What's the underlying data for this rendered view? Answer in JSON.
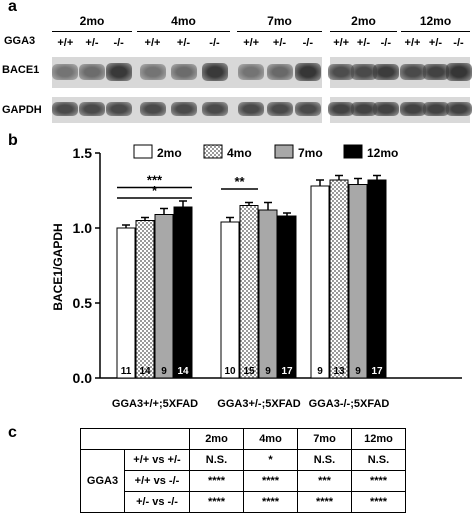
{
  "panel_a": {
    "letter": "a",
    "group_headers": [
      "2mo",
      "4mo",
      "7mo",
      "2mo",
      "12mo"
    ],
    "genotype_label": "GGA3",
    "genotypes": [
      "+/+",
      "+/-",
      "-/-",
      "+/+",
      "+/-",
      "-/-",
      "+/+",
      "+/-",
      "-/-",
      "+/+",
      "+/-",
      "-/-",
      "+/+",
      "+/-",
      "-/-"
    ],
    "rows": [
      {
        "label": "BACE1",
        "intensities": [
          0.55,
          0.6,
          0.9,
          0.55,
          0.6,
          0.9,
          0.55,
          0.62,
          0.92,
          0.78,
          0.8,
          0.88,
          0.8,
          0.85,
          0.92
        ]
      },
      {
        "label": "GAPDH",
        "intensities": [
          0.8,
          0.8,
          0.8,
          0.8,
          0.8,
          0.8,
          0.8,
          0.8,
          0.8,
          0.85,
          0.85,
          0.85,
          0.85,
          0.85,
          0.85
        ]
      }
    ]
  },
  "panel_b": {
    "letter": "b",
    "chart_data": {
      "type": "bar",
      "ylabel": "BACE1/GAPDH",
      "ylim": [
        0,
        1.5
      ],
      "yticks": [
        "0.0",
        "0.5",
        "1.0",
        "1.5"
      ],
      "legend_position": "top",
      "categories": [
        "GGA3+/+;5XFAD",
        "GGA3+/-;5XFAD",
        "GGA3-/-;5XFAD"
      ],
      "series": [
        {
          "name": "2mo",
          "values": [
            1.0,
            1.04,
            1.28
          ],
          "errors": [
            0.02,
            0.03,
            0.04
          ],
          "n": [
            "11",
            "10",
            "9"
          ],
          "color": "#ffffff",
          "pattern": "none"
        },
        {
          "name": "4mo",
          "values": [
            1.05,
            1.15,
            1.32
          ],
          "errors": [
            0.02,
            0.02,
            0.03
          ],
          "n": [
            "14",
            "15",
            "13"
          ],
          "color": "#ffffff",
          "pattern": "checker"
        },
        {
          "name": "7mo",
          "values": [
            1.09,
            1.12,
            1.29
          ],
          "errors": [
            0.04,
            0.05,
            0.04
          ],
          "n": [
            "9",
            "9",
            "9"
          ],
          "color": "#a8a8a8",
          "pattern": "none"
        },
        {
          "name": "12mo",
          "values": [
            1.14,
            1.08,
            1.32
          ],
          "errors": [
            0.04,
            0.02,
            0.03
          ],
          "n": [
            "14",
            "17",
            "17"
          ],
          "color": "#000000",
          "pattern": "none"
        }
      ],
      "significance": [
        {
          "group": 0,
          "from": 0,
          "to": 3,
          "y": 1.27,
          "label": "***"
        },
        {
          "group": 0,
          "from": 0,
          "to": 3,
          "y": 1.2,
          "label": "*"
        },
        {
          "group": 1,
          "from": 0,
          "to": 1,
          "y": 1.26,
          "label": "**"
        }
      ]
    }
  },
  "panel_c": {
    "letter": "c",
    "columns": [
      "2mo",
      "4mo",
      "7mo",
      "12mo"
    ],
    "group_label": "GGA3",
    "rows": [
      {
        "comparison": "+/+ vs +/-",
        "values": [
          "N.S.",
          "*",
          "N.S.",
          "N.S."
        ]
      },
      {
        "comparison": "+/+ vs -/-",
        "values": [
          "****",
          "****",
          "***",
          "****"
        ]
      },
      {
        "comparison": "+/- vs -/-",
        "values": [
          "****",
          "****",
          "****",
          "****"
        ]
      }
    ]
  }
}
